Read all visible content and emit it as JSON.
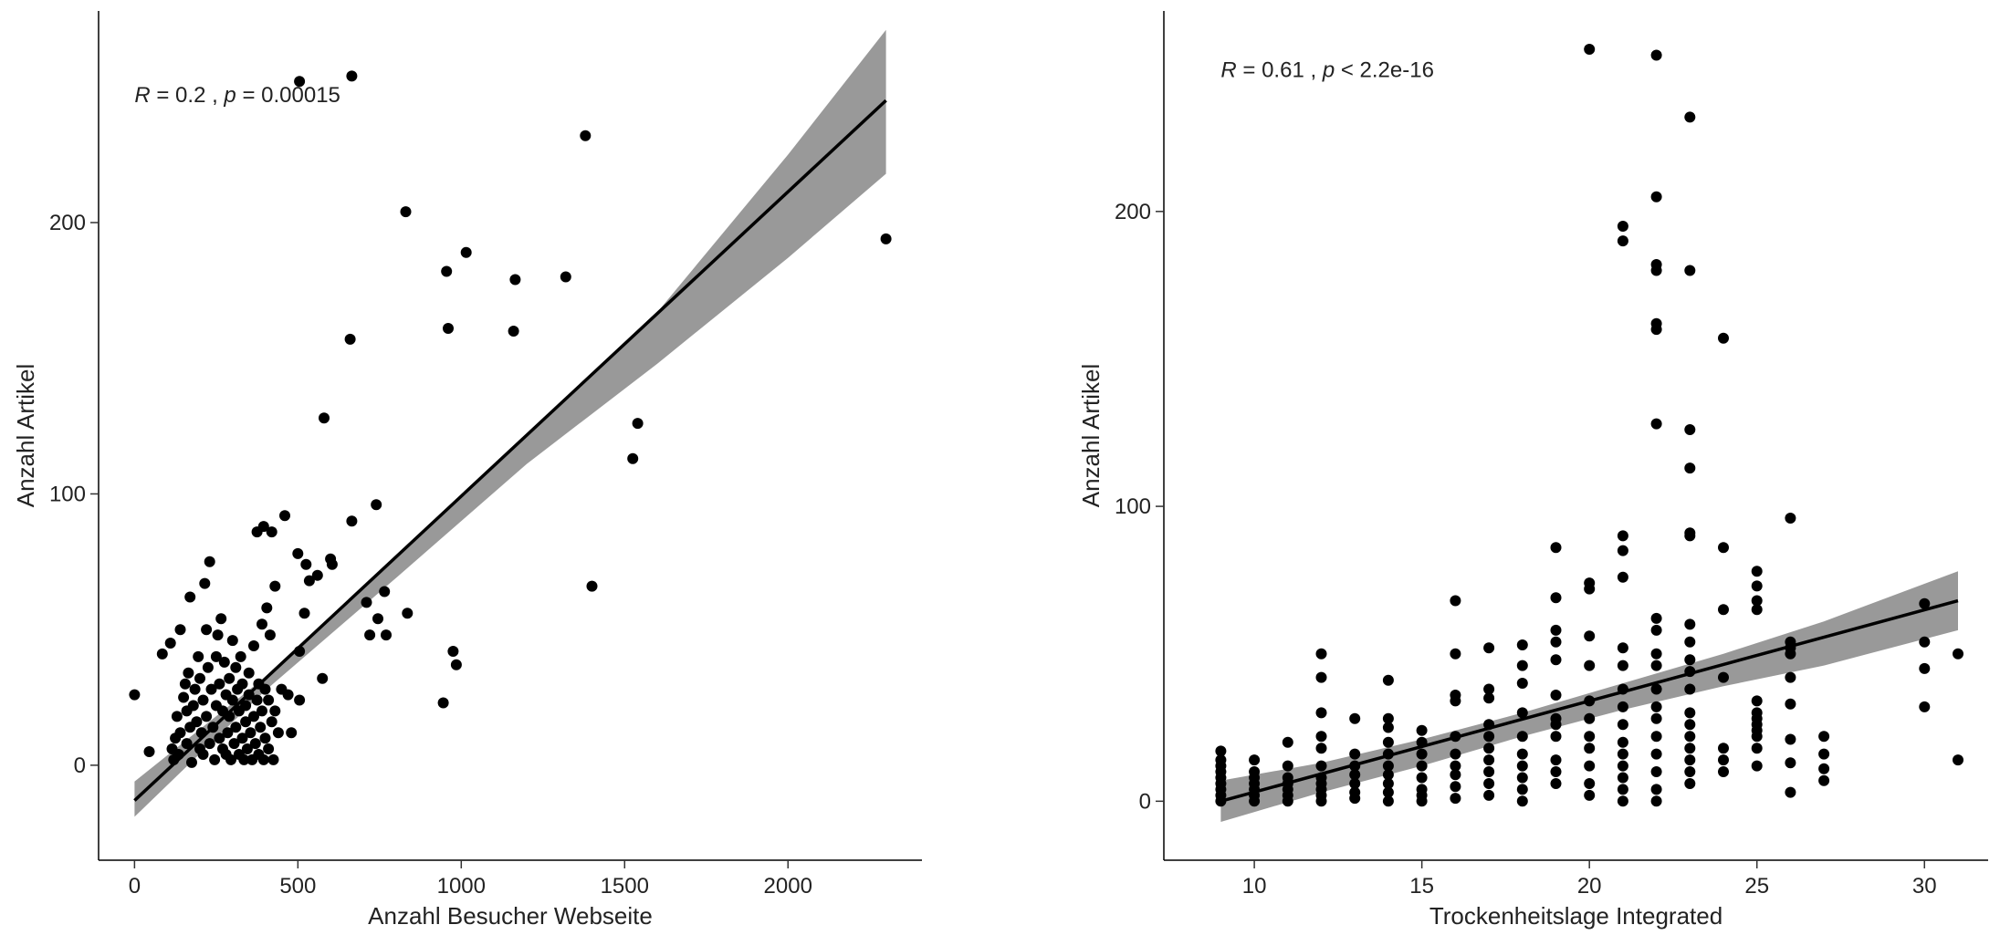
{
  "chart_data": [
    {
      "type": "scatter",
      "title": "",
      "xlabel": "Anzahl Besucher Webseite",
      "ylabel": "Anzahl Artikel",
      "xlim": [
        -110,
        2410
      ],
      "ylim": [
        -35,
        278
      ],
      "xticks": [
        0,
        500,
        1000,
        1500,
        2000
      ],
      "yticks": [
        0,
        100,
        200
      ],
      "grid": false,
      "annotation": {
        "r_sym": "R",
        "r_text": " = 0.2 , ",
        "p_sym": "p",
        "p_text": " = 0.00015"
      },
      "annotation_pos": {
        "x": 0,
        "y": 247
      },
      "fit_line": {
        "x": [
          0,
          2300
        ],
        "y": [
          -13,
          245
        ]
      },
      "confidence_band": {
        "x": [
          0,
          400,
          800,
          1200,
          1600,
          2000,
          2300
        ],
        "lower": [
          -19,
          27.5,
          69,
          111,
          148,
          187,
          218
        ],
        "upper": [
          -6,
          32.5,
          77,
          122,
          167,
          225,
          271
        ]
      },
      "points": [
        [
          0,
          26
        ],
        [
          45,
          5
        ],
        [
          85,
          41
        ],
        [
          110,
          45
        ],
        [
          115,
          6
        ],
        [
          120,
          2
        ],
        [
          125,
          10
        ],
        [
          130,
          18
        ],
        [
          135,
          4
        ],
        [
          140,
          12
        ],
        [
          140,
          50
        ],
        [
          150,
          25
        ],
        [
          155,
          30
        ],
        [
          160,
          8
        ],
        [
          160,
          20
        ],
        [
          165,
          34
        ],
        [
          170,
          62
        ],
        [
          170,
          14
        ],
        [
          175,
          1
        ],
        [
          180,
          22
        ],
        [
          185,
          28
        ],
        [
          190,
          16
        ],
        [
          195,
          40
        ],
        [
          200,
          6
        ],
        [
          200,
          32
        ],
        [
          205,
          12
        ],
        [
          210,
          24
        ],
        [
          210,
          4
        ],
        [
          215,
          67
        ],
        [
          220,
          50
        ],
        [
          220,
          18
        ],
        [
          225,
          36
        ],
        [
          230,
          75
        ],
        [
          230,
          8
        ],
        [
          235,
          28
        ],
        [
          240,
          14
        ],
        [
          245,
          2
        ],
        [
          250,
          22
        ],
        [
          250,
          40
        ],
        [
          255,
          48
        ],
        [
          260,
          10
        ],
        [
          260,
          30
        ],
        [
          265,
          54
        ],
        [
          270,
          6
        ],
        [
          270,
          20
        ],
        [
          275,
          38
        ],
        [
          280,
          26
        ],
        [
          280,
          4
        ],
        [
          285,
          12
        ],
        [
          290,
          32
        ],
        [
          290,
          18
        ],
        [
          295,
          2
        ],
        [
          300,
          24
        ],
        [
          300,
          46
        ],
        [
          305,
          8
        ],
        [
          310,
          36
        ],
        [
          310,
          14
        ],
        [
          315,
          28
        ],
        [
          320,
          4
        ],
        [
          320,
          20
        ],
        [
          325,
          40
        ],
        [
          330,
          10
        ],
        [
          330,
          30
        ],
        [
          335,
          2
        ],
        [
          340,
          22
        ],
        [
          340,
          16
        ],
        [
          345,
          6
        ],
        [
          350,
          26
        ],
        [
          350,
          34
        ],
        [
          355,
          12
        ],
        [
          360,
          2
        ],
        [
          365,
          18
        ],
        [
          365,
          44
        ],
        [
          370,
          8
        ],
        [
          375,
          24
        ],
        [
          375,
          86
        ],
        [
          380,
          4
        ],
        [
          380,
          30
        ],
        [
          385,
          14
        ],
        [
          390,
          52
        ],
        [
          390,
          20
        ],
        [
          395,
          2
        ],
        [
          395,
          88
        ],
        [
          400,
          10
        ],
        [
          400,
          28
        ],
        [
          405,
          58
        ],
        [
          410,
          6
        ],
        [
          410,
          24
        ],
        [
          415,
          48
        ],
        [
          420,
          86
        ],
        [
          420,
          16
        ],
        [
          425,
          2
        ],
        [
          430,
          20
        ],
        [
          430,
          66
        ],
        [
          440,
          12
        ],
        [
          450,
          28
        ],
        [
          460,
          92
        ],
        [
          470,
          26
        ],
        [
          480,
          12
        ],
        [
          500,
          78
        ],
        [
          505,
          42
        ],
        [
          505,
          24
        ],
        [
          505,
          252
        ],
        [
          520,
          56
        ],
        [
          525,
          74
        ],
        [
          535,
          68
        ],
        [
          560,
          70
        ],
        [
          575,
          32
        ],
        [
          580,
          128
        ],
        [
          600,
          76
        ],
        [
          605,
          74
        ],
        [
          660,
          157
        ],
        [
          665,
          90
        ],
        [
          665,
          254
        ],
        [
          710,
          60
        ],
        [
          720,
          48
        ],
        [
          740,
          96
        ],
        [
          745,
          54
        ],
        [
          765,
          64
        ],
        [
          770,
          48
        ],
        [
          830,
          204
        ],
        [
          835,
          56
        ],
        [
          945,
          23
        ],
        [
          955,
          182
        ],
        [
          960,
          161
        ],
        [
          975,
          42
        ],
        [
          985,
          37
        ],
        [
          1015,
          189
        ],
        [
          1160,
          160
        ],
        [
          1165,
          179
        ],
        [
          1320,
          180
        ],
        [
          1380,
          232
        ],
        [
          1400,
          66
        ],
        [
          1525,
          113
        ],
        [
          1540,
          126
        ],
        [
          2300,
          194
        ]
      ]
    },
    {
      "type": "scatter",
      "title": "",
      "xlabel": "Trockenheitslage Integrated",
      "ylabel": "Anzahl Artikel",
      "xlim": [
        7.3,
        31.9
      ],
      "ylim": [
        -20,
        268
      ],
      "xticks": [
        10,
        15,
        20,
        25,
        30
      ],
      "yticks": [
        0,
        100,
        200
      ],
      "grid": false,
      "annotation": {
        "r_sym": "R",
        "r_text": " = 0.61 , ",
        "p_sym": "p",
        "p_text": " < 2.2e-16"
      },
      "annotation_pos": {
        "x": 9,
        "y": 248
      },
      "fit_line": {
        "x": [
          9,
          31
        ],
        "y": [
          0,
          68
        ]
      },
      "confidence_band": {
        "x": [
          9,
          12,
          15,
          18,
          21,
          24,
          27,
          31
        ],
        "lower": [
          -7,
          3,
          12,
          22,
          31,
          39,
          46,
          58
        ],
        "upper": [
          7,
          13,
          21,
          30,
          40,
          50,
          61,
          78
        ]
      },
      "points": [
        [
          9,
          0
        ],
        [
          9,
          2
        ],
        [
          9,
          4
        ],
        [
          9,
          6
        ],
        [
          9,
          8
        ],
        [
          9,
          10
        ],
        [
          9,
          12
        ],
        [
          9,
          14
        ],
        [
          9,
          17
        ],
        [
          10,
          0
        ],
        [
          10,
          2
        ],
        [
          10,
          4
        ],
        [
          10,
          6
        ],
        [
          10,
          8
        ],
        [
          10,
          10
        ],
        [
          10,
          14
        ],
        [
          11,
          0
        ],
        [
          11,
          2
        ],
        [
          11,
          4
        ],
        [
          11,
          6
        ],
        [
          11,
          8
        ],
        [
          11,
          12
        ],
        [
          11,
          20
        ],
        [
          12,
          0
        ],
        [
          12,
          2
        ],
        [
          12,
          4
        ],
        [
          12,
          6
        ],
        [
          12,
          8
        ],
        [
          12,
          12
        ],
        [
          12,
          18
        ],
        [
          12,
          22
        ],
        [
          12,
          30
        ],
        [
          12,
          42
        ],
        [
          12,
          50
        ],
        [
          13,
          1
        ],
        [
          13,
          3
        ],
        [
          13,
          6
        ],
        [
          13,
          9
        ],
        [
          13,
          12
        ],
        [
          13,
          16
        ],
        [
          13,
          28
        ],
        [
          14,
          0
        ],
        [
          14,
          3
        ],
        [
          14,
          6
        ],
        [
          14,
          9
        ],
        [
          14,
          12
        ],
        [
          14,
          16
        ],
        [
          14,
          20
        ],
        [
          14,
          25
        ],
        [
          14,
          28
        ],
        [
          14,
          41
        ],
        [
          15,
          0
        ],
        [
          15,
          2
        ],
        [
          15,
          4
        ],
        [
          15,
          8
        ],
        [
          15,
          12
        ],
        [
          15,
          16
        ],
        [
          15,
          20
        ],
        [
          15,
          24
        ],
        [
          16,
          1
        ],
        [
          16,
          5
        ],
        [
          16,
          9
        ],
        [
          16,
          12
        ],
        [
          16,
          16
        ],
        [
          16,
          22
        ],
        [
          16,
          34
        ],
        [
          16,
          36
        ],
        [
          16,
          50
        ],
        [
          16,
          68
        ],
        [
          17,
          2
        ],
        [
          17,
          6
        ],
        [
          17,
          10
        ],
        [
          17,
          14
        ],
        [
          17,
          18
        ],
        [
          17,
          22
        ],
        [
          17,
          26
        ],
        [
          17,
          35
        ],
        [
          17,
          38
        ],
        [
          17,
          52
        ],
        [
          18,
          0
        ],
        [
          18,
          4
        ],
        [
          18,
          8
        ],
        [
          18,
          12
        ],
        [
          18,
          16
        ],
        [
          18,
          22
        ],
        [
          18,
          30
        ],
        [
          18,
          40
        ],
        [
          18,
          46
        ],
        [
          18,
          53
        ],
        [
          19,
          6
        ],
        [
          19,
          10
        ],
        [
          19,
          14
        ],
        [
          19,
          22
        ],
        [
          19,
          26
        ],
        [
          19,
          28
        ],
        [
          19,
          36
        ],
        [
          19,
          48
        ],
        [
          19,
          54
        ],
        [
          19,
          58
        ],
        [
          19,
          69
        ],
        [
          19,
          86
        ],
        [
          20,
          2
        ],
        [
          20,
          6
        ],
        [
          20,
          12
        ],
        [
          20,
          18
        ],
        [
          20,
          22
        ],
        [
          20,
          28
        ],
        [
          20,
          34
        ],
        [
          20,
          46
        ],
        [
          20,
          56
        ],
        [
          20,
          72
        ],
        [
          20,
          74
        ],
        [
          20,
          255
        ],
        [
          21,
          0
        ],
        [
          21,
          4
        ],
        [
          21,
          8
        ],
        [
          21,
          12
        ],
        [
          21,
          16
        ],
        [
          21,
          20
        ],
        [
          21,
          26
        ],
        [
          21,
          32
        ],
        [
          21,
          38
        ],
        [
          21,
          46
        ],
        [
          21,
          52
        ],
        [
          21,
          76
        ],
        [
          21,
          85
        ],
        [
          21,
          90
        ],
        [
          21,
          190
        ],
        [
          21,
          195
        ],
        [
          22,
          0
        ],
        [
          22,
          4
        ],
        [
          22,
          10
        ],
        [
          22,
          16
        ],
        [
          22,
          22
        ],
        [
          22,
          28
        ],
        [
          22,
          32
        ],
        [
          22,
          38
        ],
        [
          22,
          46
        ],
        [
          22,
          50
        ],
        [
          22,
          58
        ],
        [
          22,
          62
        ],
        [
          22,
          128
        ],
        [
          22,
          160
        ],
        [
          22,
          162
        ],
        [
          22,
          180
        ],
        [
          22,
          182
        ],
        [
          22,
          205
        ],
        [
          22,
          253
        ],
        [
          23,
          6
        ],
        [
          23,
          10
        ],
        [
          23,
          14
        ],
        [
          23,
          18
        ],
        [
          23,
          22
        ],
        [
          23,
          26
        ],
        [
          23,
          30
        ],
        [
          23,
          38
        ],
        [
          23,
          44
        ],
        [
          23,
          48
        ],
        [
          23,
          54
        ],
        [
          23,
          60
        ],
        [
          23,
          90
        ],
        [
          23,
          91
        ],
        [
          23,
          113
        ],
        [
          23,
          126
        ],
        [
          23,
          180
        ],
        [
          23,
          232
        ],
        [
          24,
          10
        ],
        [
          24,
          14
        ],
        [
          24,
          18
        ],
        [
          24,
          42
        ],
        [
          24,
          65
        ],
        [
          24,
          86
        ],
        [
          24,
          157
        ],
        [
          25,
          12
        ],
        [
          25,
          18
        ],
        [
          25,
          22
        ],
        [
          25,
          24
        ],
        [
          25,
          26
        ],
        [
          25,
          28
        ],
        [
          25,
          30
        ],
        [
          25,
          34
        ],
        [
          25,
          65
        ],
        [
          25,
          68
        ],
        [
          25,
          73
        ],
        [
          25,
          78
        ],
        [
          26,
          3
        ],
        [
          26,
          13
        ],
        [
          26,
          21
        ],
        [
          26,
          33
        ],
        [
          26,
          42
        ],
        [
          26,
          50
        ],
        [
          26,
          52
        ],
        [
          26,
          54
        ],
        [
          26,
          96
        ],
        [
          27,
          7
        ],
        [
          27,
          11
        ],
        [
          27,
          16
        ],
        [
          27,
          22
        ],
        [
          30,
          32
        ],
        [
          30,
          45
        ],
        [
          30,
          54
        ],
        [
          30,
          67
        ],
        [
          31,
          14
        ],
        [
          31,
          50
        ]
      ]
    }
  ]
}
